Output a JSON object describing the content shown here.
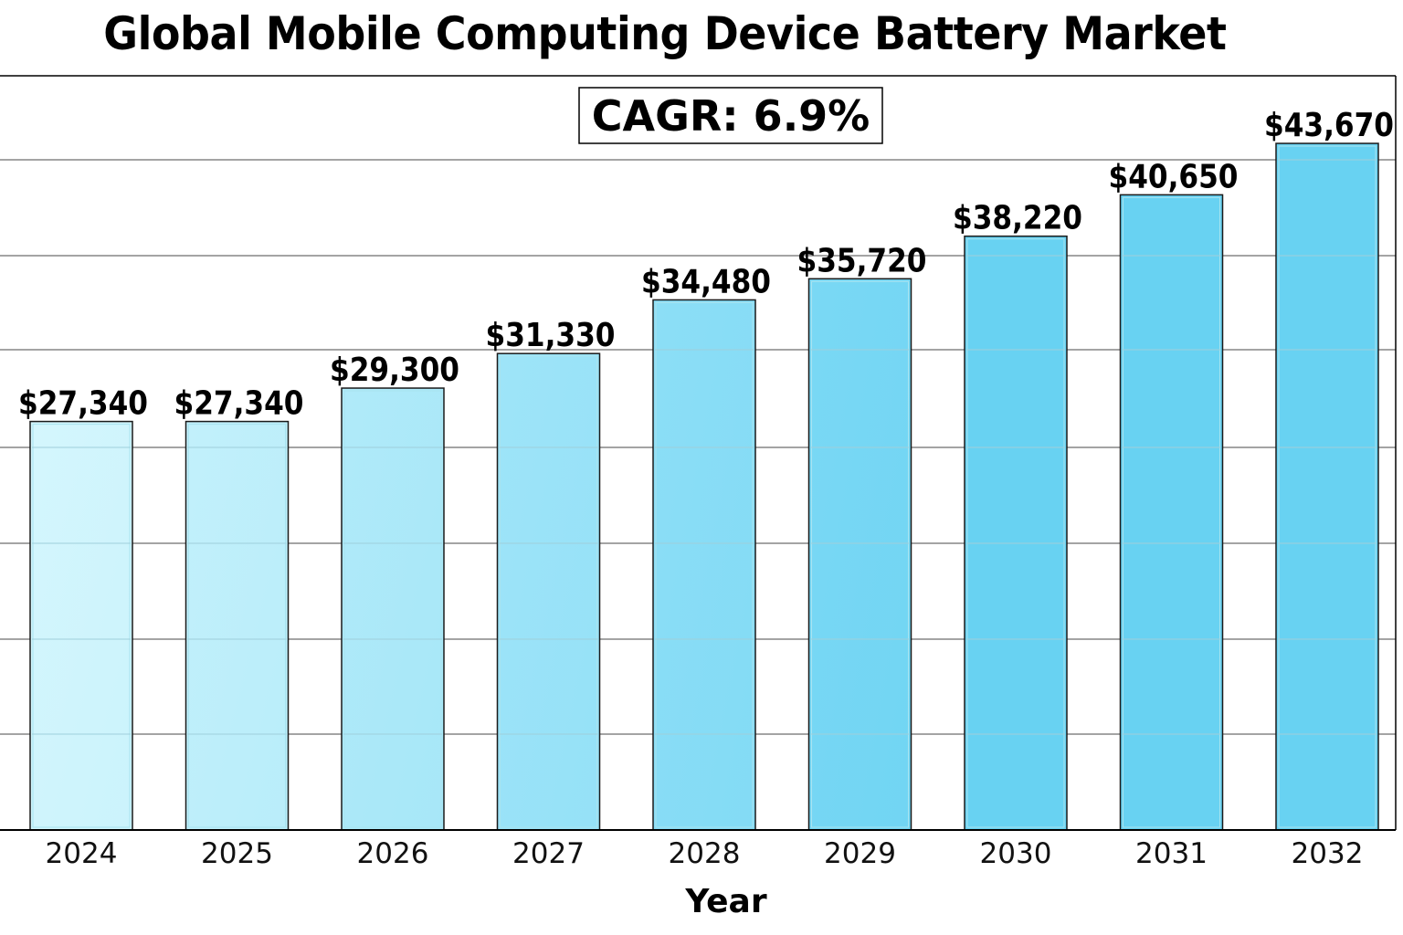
{
  "chart_data": {
    "type": "bar",
    "title": "Global Mobile Computing Device Battery Market",
    "xlabel": "Year",
    "ylabel": "",
    "categories": [
      "2024",
      "2025",
      "2026",
      "2027",
      "2028",
      "2029",
      "2030",
      "2031",
      "2032"
    ],
    "values": [
      27340,
      27340,
      29300,
      31330,
      34480,
      35720,
      38220,
      40650,
      43670
    ],
    "value_labels": [
      "$27,340",
      "$27,340",
      "$29,300",
      "$31,330",
      "$34,480",
      "$35,720",
      "$38,220",
      "$40,650",
      "$43,670"
    ],
    "ylim": [
      3350,
      47640
    ],
    "grid": true,
    "y_tick_labels_shown": false,
    "annotation": "CAGR: 6.9%",
    "annotation_position": "top-center",
    "colors": {
      "bar_start": "#d4f6fd",
      "bar_end": "#68d2f2",
      "bar_edge": "#1a1a1a",
      "grid": "#6e6e6e",
      "axis": "#000000"
    }
  }
}
